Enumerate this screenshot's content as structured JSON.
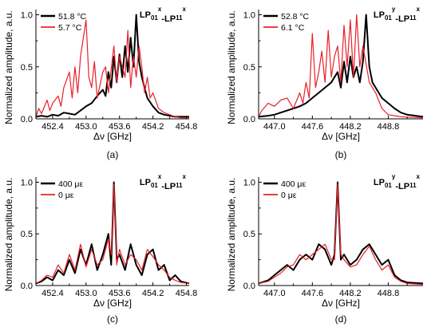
{
  "colors": {
    "series_hot": "#000000",
    "series_cold": "#e8202a",
    "axis": "#000000"
  },
  "chart_data": [
    {
      "type": "line",
      "panel_label": "(a)",
      "title": "LP01x-LP11x",
      "title_parts": {
        "a": "LP",
        "a_sub": "01",
        "a_sup": "x",
        "b": "-LP",
        "b_sub": "11",
        "b_sup": "x"
      },
      "xlabel": "Δν [GHz]",
      "ylabel": "Normalized amplitude, a.u.",
      "xlim": [
        452.1,
        454.85
      ],
      "ylim": [
        0,
        1.05
      ],
      "xticks": [
        452.4,
        453.0,
        453.6,
        454.2,
        454.8
      ],
      "xtick_labels": [
        "452.4",
        "453.0",
        "453.6",
        "454.2",
        "454.8"
      ],
      "yticks": [
        0.0,
        0.5,
        1.0
      ],
      "ytick_labels": [
        "0.0",
        "0.5",
        "1.0"
      ],
      "legend_position": "top-left",
      "series": [
        {
          "name": "51.8 °C",
          "color": "#000000",
          "width": 2.0,
          "x": [
            452.1,
            452.2,
            452.3,
            452.4,
            452.5,
            452.6,
            452.7,
            452.8,
            452.9,
            453.0,
            453.1,
            453.2,
            453.3,
            453.35,
            453.4,
            453.45,
            453.5,
            453.55,
            453.6,
            453.65,
            453.7,
            453.75,
            453.8,
            453.85,
            453.9,
            453.95,
            454.0,
            454.05,
            454.1,
            454.2,
            454.3,
            454.4,
            454.6,
            454.85
          ],
          "values": [
            0.02,
            0.03,
            0.02,
            0.04,
            0.03,
            0.06,
            0.05,
            0.04,
            0.08,
            0.12,
            0.15,
            0.22,
            0.28,
            0.22,
            0.45,
            0.3,
            0.6,
            0.35,
            0.62,
            0.4,
            0.7,
            0.45,
            0.78,
            0.5,
            1.0,
            0.55,
            0.4,
            0.3,
            0.2,
            0.12,
            0.06,
            0.04,
            0.02,
            0.02
          ]
        },
        {
          "name": "5.7 °C",
          "color": "#e8202a",
          "width": 1.2,
          "x": [
            452.1,
            452.15,
            452.2,
            452.3,
            452.35,
            452.4,
            452.5,
            452.55,
            452.6,
            452.7,
            452.75,
            452.8,
            452.85,
            452.9,
            453.0,
            453.05,
            453.1,
            453.15,
            453.2,
            453.3,
            453.35,
            453.4,
            453.5,
            453.55,
            453.6,
            453.7,
            453.75,
            453.8,
            453.85,
            453.9,
            453.95,
            454.0,
            454.05,
            454.1,
            454.15,
            454.2,
            454.3,
            454.4,
            454.5,
            454.6,
            454.7,
            454.85
          ],
          "values": [
            0.02,
            0.1,
            0.05,
            0.18,
            0.08,
            0.15,
            0.22,
            0.12,
            0.3,
            0.45,
            0.2,
            0.5,
            0.25,
            0.6,
            0.95,
            0.4,
            0.3,
            0.55,
            0.2,
            0.45,
            0.5,
            0.25,
            0.7,
            0.35,
            0.6,
            0.4,
            0.85,
            0.3,
            0.6,
            0.4,
            0.7,
            0.5,
            0.25,
            0.4,
            0.2,
            0.25,
            0.1,
            0.06,
            0.04,
            0.02,
            0.01,
            0.01
          ]
        }
      ]
    },
    {
      "type": "line",
      "panel_label": "(b)",
      "title": "LP01y-LP11x",
      "title_parts": {
        "a": "LP",
        "a_sub": "01",
        "a_sup": "y",
        "b": "-LP",
        "b_sub": "11",
        "b_sup": "x"
      },
      "xlabel": "Δν [GHz]",
      "ylabel": "Normalized amplitude, a.u.",
      "xlim": [
        446.75,
        449.35
      ],
      "ylim": [
        0,
        1.05
      ],
      "xticks": [
        447.0,
        447.6,
        448.2,
        448.8
      ],
      "xtick_labels": [
        "447.0",
        "447.6",
        "448.2",
        "448.8"
      ],
      "yticks": [
        0.0,
        0.5,
        1.0
      ],
      "ytick_labels": [
        "0.0",
        "0.5",
        "1.0"
      ],
      "legend_position": "top-left",
      "series": [
        {
          "name": "52.8 °C",
          "color": "#000000",
          "width": 2.0,
          "x": [
            446.75,
            446.9,
            447.0,
            447.1,
            447.2,
            447.3,
            447.4,
            447.5,
            447.6,
            447.7,
            447.8,
            447.9,
            448.0,
            448.05,
            448.1,
            448.15,
            448.2,
            448.25,
            448.3,
            448.35,
            448.4,
            448.45,
            448.5,
            448.55,
            448.6,
            448.7,
            448.8,
            448.9,
            449.0,
            449.1,
            449.35
          ],
          "values": [
            0.02,
            0.03,
            0.04,
            0.06,
            0.08,
            0.1,
            0.12,
            0.15,
            0.2,
            0.25,
            0.3,
            0.35,
            0.45,
            0.3,
            0.55,
            0.35,
            0.6,
            0.4,
            0.5,
            0.35,
            0.55,
            1.0,
            0.5,
            0.35,
            0.3,
            0.2,
            0.15,
            0.1,
            0.06,
            0.04,
            0.02
          ]
        },
        {
          "name": "6.1 °C",
          "color": "#e8202a",
          "width": 1.2,
          "x": [
            446.75,
            446.8,
            446.9,
            447.0,
            447.1,
            447.2,
            447.3,
            447.4,
            447.45,
            447.5,
            447.55,
            447.6,
            447.65,
            447.7,
            447.75,
            447.8,
            447.85,
            447.9,
            447.95,
            448.0,
            448.05,
            448.1,
            448.15,
            448.2,
            448.25,
            448.3,
            448.35,
            448.4,
            448.5,
            448.6,
            448.7,
            448.8,
            449.0,
            449.35
          ],
          "values": [
            0.02,
            0.08,
            0.15,
            0.12,
            0.18,
            0.2,
            0.1,
            0.25,
            0.15,
            0.35,
            0.2,
            0.82,
            0.3,
            0.45,
            0.65,
            0.35,
            0.85,
            0.4,
            0.6,
            0.7,
            0.35,
            0.9,
            0.5,
            0.95,
            0.4,
            1.0,
            0.5,
            0.7,
            0.35,
            0.25,
            0.1,
            0.04,
            0.02,
            0.01
          ]
        }
      ]
    },
    {
      "type": "line",
      "panel_label": "(c)",
      "title": "LP01x-LP11x",
      "title_parts": {
        "a": "LP",
        "a_sub": "01",
        "a_sup": "x",
        "b": "-LP",
        "b_sub": "11",
        "b_sup": "x"
      },
      "xlabel": "Δν [GHz]",
      "ylabel": "Normalized amplitude, a.u.",
      "xlim": [
        452.1,
        454.85
      ],
      "ylim": [
        0,
        1.05
      ],
      "xticks": [
        452.4,
        453.0,
        453.6,
        454.2,
        454.8
      ],
      "xtick_labels": [
        "452.4",
        "453.0",
        "453.6",
        "454.2",
        "454.8"
      ],
      "yticks": [
        0.0,
        0.5,
        1.0
      ],
      "ytick_labels": [
        "0.0",
        "0.5",
        "1.0"
      ],
      "legend_position": "top-left",
      "series": [
        {
          "name": "400 με",
          "color": "#000000",
          "width": 2.0,
          "x": [
            452.1,
            452.2,
            452.3,
            452.4,
            452.5,
            452.6,
            452.7,
            452.8,
            452.9,
            453.0,
            453.1,
            453.2,
            453.3,
            453.4,
            453.45,
            453.5,
            453.55,
            453.6,
            453.7,
            453.8,
            453.9,
            454.0,
            454.1,
            454.2,
            454.3,
            454.4,
            454.5,
            454.6,
            454.7,
            454.85
          ],
          "values": [
            0.02,
            0.04,
            0.08,
            0.05,
            0.15,
            0.1,
            0.25,
            0.12,
            0.35,
            0.2,
            0.4,
            0.15,
            0.3,
            0.5,
            0.2,
            1.0,
            0.25,
            0.3,
            0.15,
            0.4,
            0.2,
            0.1,
            0.3,
            0.35,
            0.15,
            0.2,
            0.05,
            0.1,
            0.04,
            0.02
          ]
        },
        {
          "name": "0 με",
          "color": "#e8202a",
          "width": 1.2,
          "x": [
            452.1,
            452.2,
            452.3,
            452.4,
            452.5,
            452.6,
            452.7,
            452.8,
            452.9,
            453.0,
            453.1,
            453.2,
            453.3,
            453.4,
            453.45,
            453.5,
            453.55,
            453.6,
            453.7,
            453.8,
            453.9,
            454.0,
            454.1,
            454.2,
            454.3,
            454.4,
            454.5,
            454.6,
            454.7,
            454.85
          ],
          "values": [
            0.02,
            0.05,
            0.1,
            0.08,
            0.2,
            0.12,
            0.3,
            0.15,
            0.4,
            0.18,
            0.35,
            0.2,
            0.25,
            0.45,
            0.3,
            0.98,
            0.2,
            0.35,
            0.2,
            0.3,
            0.25,
            0.15,
            0.35,
            0.28,
            0.2,
            0.15,
            0.08,
            0.05,
            0.03,
            0.02
          ]
        }
      ]
    },
    {
      "type": "line",
      "panel_label": "(d)",
      "title": "LP01y-LP11x",
      "title_parts": {
        "a": "LP",
        "a_sub": "01",
        "a_sup": "y",
        "b": "-LP",
        "b_sub": "11",
        "b_sup": "x"
      },
      "xlabel": "Δν [GHz]",
      "ylabel": "Normalized amplitude, a.u.",
      "xlim": [
        446.75,
        449.35
      ],
      "ylim": [
        0,
        1.05
      ],
      "xticks": [
        447.0,
        447.6,
        448.2,
        448.8
      ],
      "xtick_labels": [
        "447.0",
        "447.6",
        "448.2",
        "448.8"
      ],
      "yticks": [
        0.0,
        0.5,
        1.0
      ],
      "ytick_labels": [
        "0.0",
        "0.5",
        "1.0"
      ],
      "legend_position": "top-left",
      "series": [
        {
          "name": "400 με",
          "color": "#000000",
          "width": 2.0,
          "x": [
            446.75,
            446.9,
            447.0,
            447.1,
            447.2,
            447.3,
            447.4,
            447.5,
            447.6,
            447.7,
            447.8,
            447.9,
            447.95,
            448.0,
            448.05,
            448.1,
            448.2,
            448.3,
            448.4,
            448.5,
            448.6,
            448.7,
            448.8,
            448.9,
            449.0,
            449.1,
            449.35
          ],
          "values": [
            0.02,
            0.05,
            0.1,
            0.15,
            0.2,
            0.15,
            0.25,
            0.3,
            0.25,
            0.4,
            0.35,
            0.2,
            0.3,
            1.0,
            0.25,
            0.3,
            0.2,
            0.25,
            0.35,
            0.4,
            0.3,
            0.2,
            0.25,
            0.1,
            0.05,
            0.03,
            0.02
          ]
        },
        {
          "name": "0 με",
          "color": "#e8202a",
          "width": 1.2,
          "x": [
            446.75,
            446.9,
            447.0,
            447.1,
            447.2,
            447.3,
            447.4,
            447.5,
            447.6,
            447.7,
            447.8,
            447.9,
            447.95,
            448.0,
            448.05,
            448.1,
            448.2,
            448.3,
            448.4,
            448.5,
            448.6,
            448.7,
            448.8,
            448.9,
            449.0,
            449.1,
            449.35
          ],
          "values": [
            0.02,
            0.04,
            0.08,
            0.12,
            0.18,
            0.2,
            0.3,
            0.25,
            0.3,
            0.35,
            0.4,
            0.25,
            0.25,
            0.98,
            0.3,
            0.25,
            0.18,
            0.2,
            0.3,
            0.38,
            0.25,
            0.15,
            0.2,
            0.08,
            0.04,
            0.02,
            0.01
          ]
        }
      ]
    }
  ]
}
